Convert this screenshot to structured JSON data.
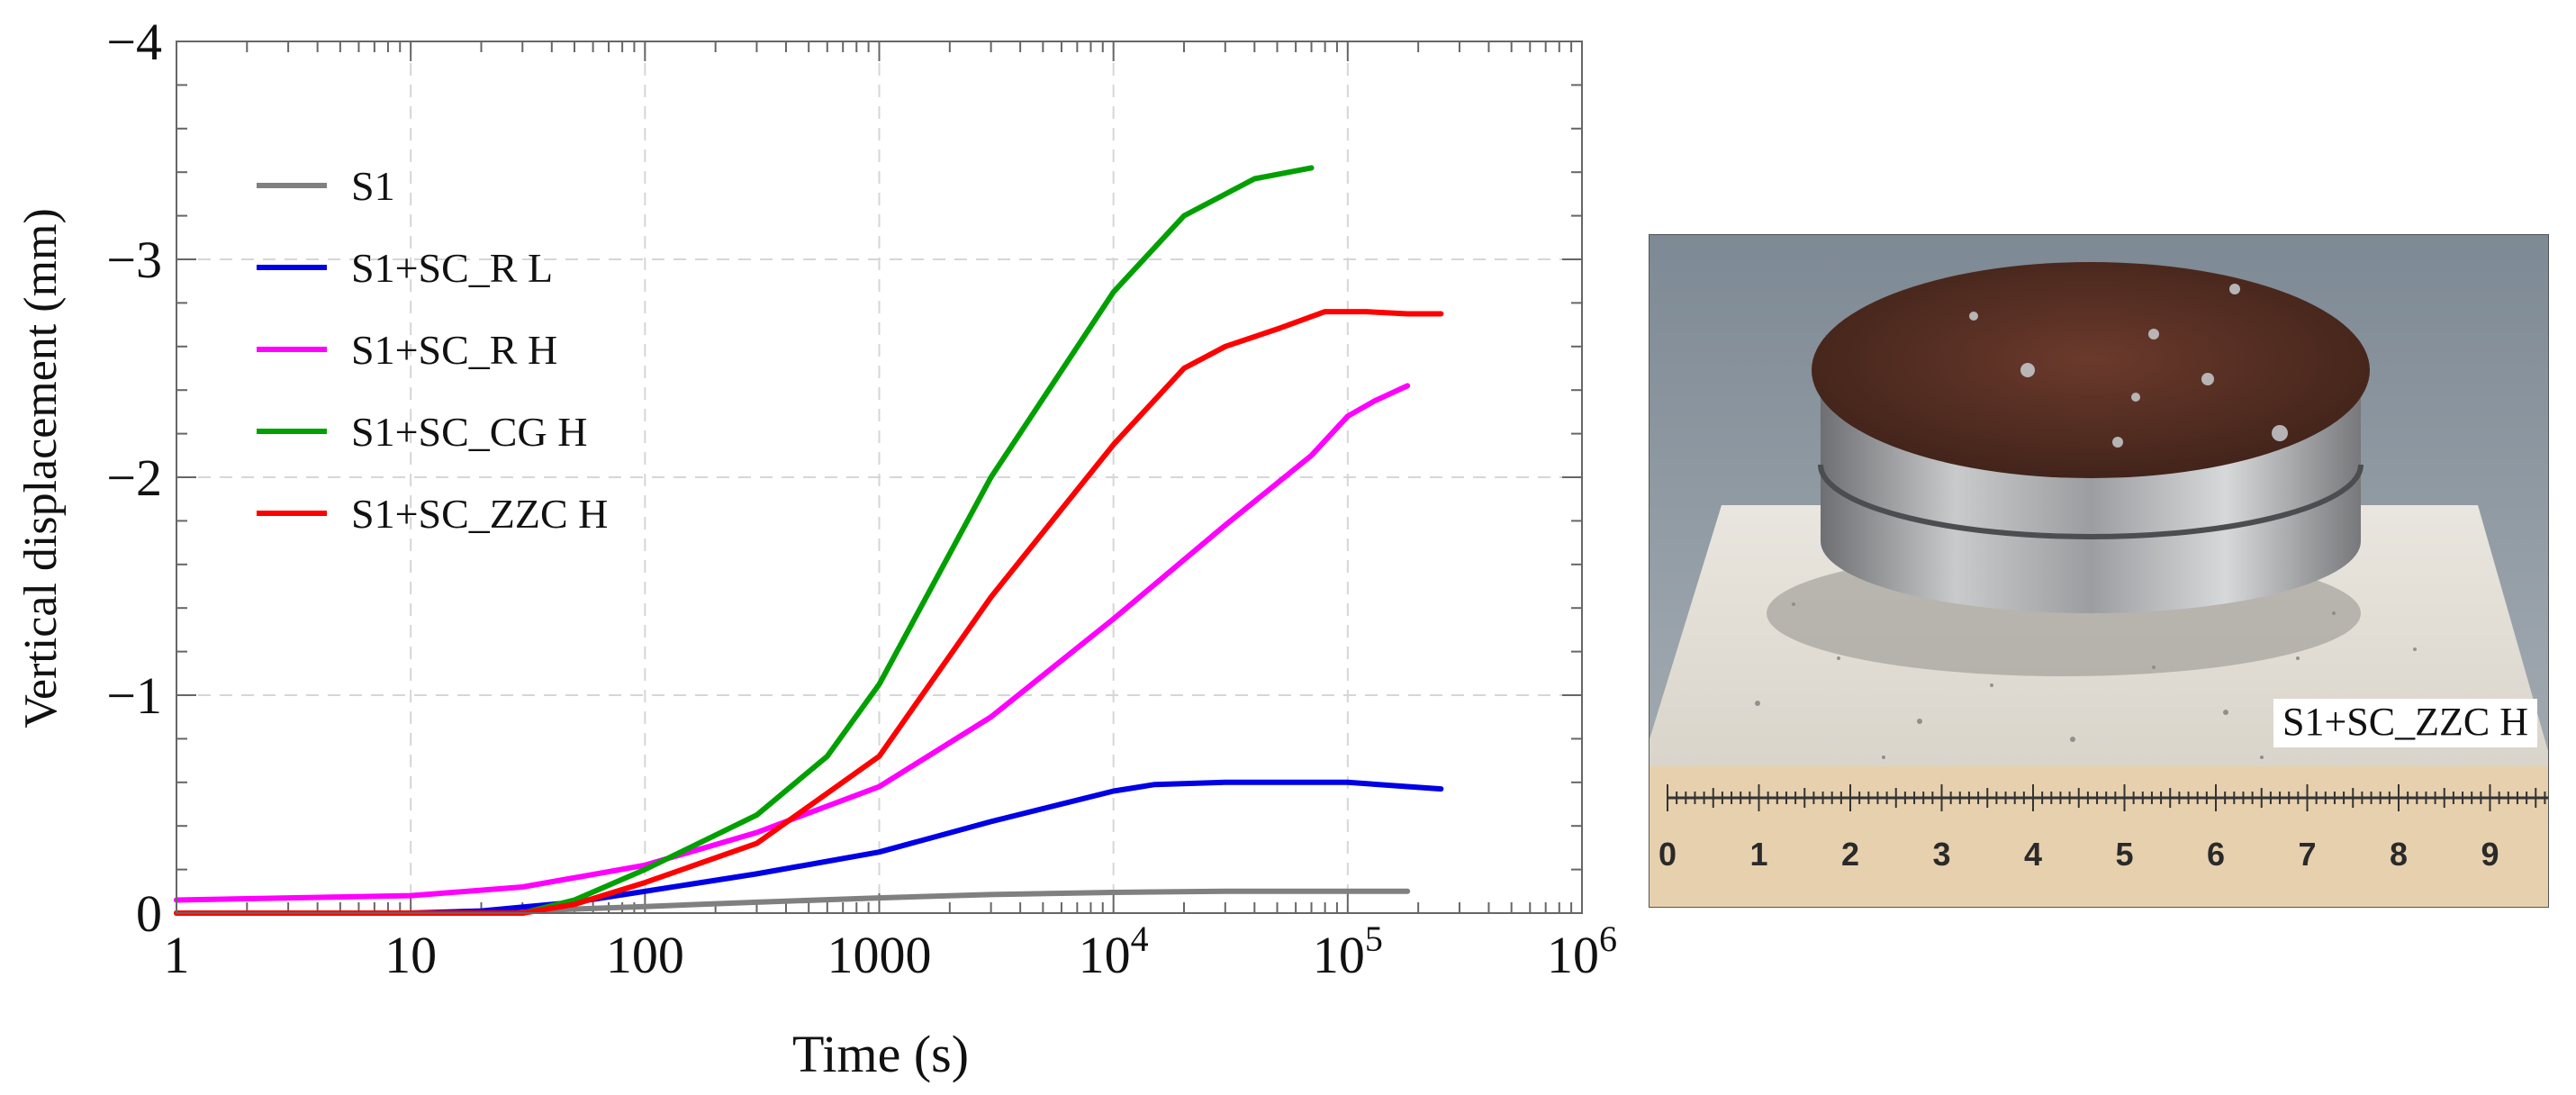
{
  "colors": {
    "S1": "#808080",
    "S1+SC_R L": "#0000e6",
    "S1+SC_R H": "#ff00ff",
    "S1+SC_CG H": "#00a000",
    "S1+SC_ZZC H": "#ff0000"
  },
  "chart_data": {
    "type": "line",
    "xscale": "log",
    "xlabel": "Time (s)",
    "ylabel": "Vertical displacement (mm)",
    "xlim": [
      1,
      1000000
    ],
    "ylim": [
      0,
      -4
    ],
    "y_inverted": true,
    "grid": true,
    "legend_position": "top-left",
    "x_ticks": [
      {
        "value": 1,
        "label": "1",
        "base": "",
        "exp": ""
      },
      {
        "value": 10,
        "label": "10",
        "base": "",
        "exp": ""
      },
      {
        "value": 100,
        "label": "100",
        "base": "",
        "exp": ""
      },
      {
        "value": 1000,
        "label": "1000",
        "base": "",
        "exp": ""
      },
      {
        "value": 10000,
        "label": "",
        "base": "10",
        "exp": "4"
      },
      {
        "value": 100000,
        "label": "",
        "base": "10",
        "exp": "5"
      },
      {
        "value": 1000000,
        "label": "",
        "base": "10",
        "exp": "6"
      }
    ],
    "y_ticks": [
      {
        "value": 0,
        "label": "0"
      },
      {
        "value": -1,
        "label": "−1"
      },
      {
        "value": -2,
        "label": "−2"
      },
      {
        "value": -3,
        "label": "−3"
      },
      {
        "value": -4,
        "label": "−4"
      }
    ],
    "series": [
      {
        "name": "S1",
        "points": [
          [
            1,
            0
          ],
          [
            10,
            0
          ],
          [
            30,
            -0.01
          ],
          [
            100,
            -0.03
          ],
          [
            300,
            -0.05
          ],
          [
            1000,
            -0.07
          ],
          [
            3000,
            -0.085
          ],
          [
            10000,
            -0.095
          ],
          [
            30000,
            -0.1
          ],
          [
            100000,
            -0.1
          ],
          [
            180000,
            -0.1
          ]
        ]
      },
      {
        "name": "S1+SC_R L",
        "points": [
          [
            1,
            0
          ],
          [
            10,
            0
          ],
          [
            20,
            -0.01
          ],
          [
            50,
            -0.05
          ],
          [
            100,
            -0.1
          ],
          [
            300,
            -0.18
          ],
          [
            1000,
            -0.28
          ],
          [
            3000,
            -0.42
          ],
          [
            10000,
            -0.56
          ],
          [
            15000,
            -0.59
          ],
          [
            30000,
            -0.6
          ],
          [
            50000,
            -0.6
          ],
          [
            100000,
            -0.6
          ],
          [
            250000,
            -0.57
          ]
        ]
      },
      {
        "name": "S1+SC_R H",
        "points": [
          [
            1,
            -0.06
          ],
          [
            10,
            -0.08
          ],
          [
            30,
            -0.12
          ],
          [
            100,
            -0.22
          ],
          [
            300,
            -0.37
          ],
          [
            1000,
            -0.58
          ],
          [
            3000,
            -0.9
          ],
          [
            10000,
            -1.35
          ],
          [
            30000,
            -1.78
          ],
          [
            70000,
            -2.1
          ],
          [
            100000,
            -2.28
          ],
          [
            130000,
            -2.35
          ],
          [
            180000,
            -2.42
          ]
        ]
      },
      {
        "name": "S1+SC_CG H",
        "points": [
          [
            1,
            0
          ],
          [
            10,
            0
          ],
          [
            30,
            0
          ],
          [
            50,
            -0.06
          ],
          [
            100,
            -0.2
          ],
          [
            300,
            -0.45
          ],
          [
            600,
            -0.72
          ],
          [
            1000,
            -1.05
          ],
          [
            3000,
            -2.0
          ],
          [
            10000,
            -2.85
          ],
          [
            20000,
            -3.2
          ],
          [
            40000,
            -3.37
          ],
          [
            70000,
            -3.42
          ]
        ]
      },
      {
        "name": "S1+SC_ZZC H",
        "points": [
          [
            1,
            0
          ],
          [
            10,
            0
          ],
          [
            30,
            0
          ],
          [
            50,
            -0.04
          ],
          [
            100,
            -0.14
          ],
          [
            300,
            -0.32
          ],
          [
            1000,
            -0.72
          ],
          [
            3000,
            -1.45
          ],
          [
            10000,
            -2.15
          ],
          [
            20000,
            -2.5
          ],
          [
            30000,
            -2.6
          ],
          [
            50000,
            -2.68
          ],
          [
            80000,
            -2.76
          ],
          [
            120000,
            -2.76
          ],
          [
            180000,
            -2.75
          ],
          [
            250000,
            -2.75
          ]
        ]
      }
    ]
  },
  "photo": {
    "caption": "S1+SC_ZZC H",
    "ruler_labels": [
      "0",
      "1",
      "2",
      "3",
      "4",
      "5",
      "6",
      "7",
      "8",
      "9"
    ]
  }
}
